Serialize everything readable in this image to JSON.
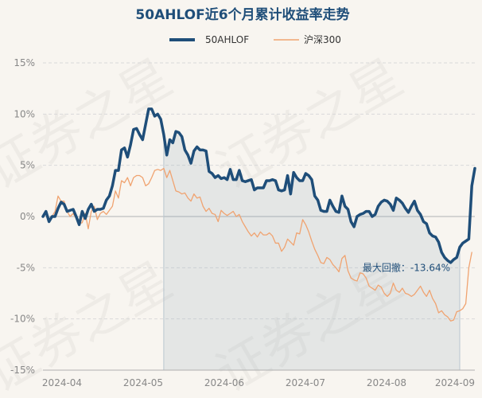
{
  "chart_data": {
    "type": "line",
    "title": "50AHLOF近6个月累计收益率走势",
    "watermark": "证券之星",
    "ylim": [
      -15,
      15
    ],
    "yticks": [
      15,
      10,
      5,
      0,
      -5,
      -10,
      -15
    ],
    "ytick_labels": [
      "15%",
      "10%",
      "5%",
      "0%",
      "-5%",
      "-10%",
      "-15%"
    ],
    "x_tick_labels": [
      "2024-04",
      "2024-05",
      "2024-06",
      "2024-07",
      "2024-08",
      "2024-09"
    ],
    "legend_position": "top-center",
    "grid": "horizontal-dashed",
    "max_drawdown": {
      "label": "最大回撤：-13.64%",
      "value": -13.64,
      "start_index": 40,
      "end_index": 138
    },
    "series": [
      {
        "name": "50AHLOF",
        "color": "#1f4e79",
        "values": [
          0,
          0.5,
          -0.5,
          0,
          0,
          0.8,
          1.4,
          1.2,
          0.5,
          0.6,
          0.7,
          0,
          -0.8,
          0.5,
          -0.2,
          0.7,
          1.2,
          0.5,
          0.7,
          0.7,
          0.8,
          1.6,
          2,
          3,
          4.5,
          4.5,
          6.5,
          6.7,
          5.8,
          7,
          8.5,
          8.6,
          8,
          7.5,
          9,
          10.5,
          10.5,
          9.8,
          10,
          9.5,
          8,
          6,
          7.5,
          7.2,
          8.3,
          8.2,
          7.8,
          6.5,
          6,
          5.2,
          6.4,
          6.8,
          6.5,
          6.5,
          6.4,
          4.4,
          4.2,
          3.8,
          4,
          3.7,
          3.8,
          3.6,
          4.6,
          3.6,
          3.6,
          4.5,
          3.5,
          3.4,
          3.5,
          3.6,
          2.6,
          2.8,
          2.8,
          2.8,
          3.5,
          3.5,
          3.6,
          3.5,
          2.6,
          2.5,
          2.6,
          4,
          2.2,
          4.3,
          3.8,
          3.5,
          3.5,
          4.2,
          4,
          3.6,
          2,
          1.6,
          0.6,
          0.5,
          0.5,
          1.6,
          1,
          0.5,
          0.4,
          2,
          1,
          0.7,
          -0.5,
          -1,
          0,
          0.2,
          0.3,
          0.5,
          0.5,
          0,
          0.2,
          1,
          1.4,
          1.6,
          1.5,
          1.2,
          0.6,
          1.8,
          1.6,
          1.3,
          0.8,
          0.4,
          1,
          1.5,
          0.6,
          0.2,
          -0.5,
          -0.7,
          -1.6,
          -1.9,
          -2,
          -2.5,
          -3.5,
          -4,
          -4.3,
          -4.5,
          -4.2,
          -4,
          -3,
          -2.6,
          -2.4,
          -2.2,
          3,
          4.7
        ]
      },
      {
        "name": "沪深300",
        "color": "#f0a370",
        "values": [
          0,
          0.5,
          -0.5,
          0,
          0.5,
          2,
          1.5,
          1.5,
          0.5,
          0,
          0.3,
          -0.2,
          -0.7,
          -0.6,
          0.3,
          -1.2,
          0.5,
          1,
          -0.3,
          0.3,
          0.5,
          0.2,
          0.6,
          1,
          2.5,
          1.8,
          3.5,
          3.3,
          3.8,
          3,
          3.8,
          4,
          4,
          3.8,
          3,
          3.2,
          3.8,
          4.5,
          4.6,
          4.5,
          4.7,
          3.8,
          4.5,
          3.5,
          2.5,
          2.4,
          2.2,
          2.3,
          1.8,
          1.5,
          2.2,
          1.8,
          1.9,
          1,
          0.5,
          0.8,
          0.3,
          0.2,
          -0.5,
          0.6,
          0.3,
          0.1,
          0.3,
          0.5,
          0,
          0.2,
          -0.5,
          -1,
          -1.5,
          -1.9,
          -1.6,
          -2,
          -1.5,
          -1.8,
          -1.8,
          -1.6,
          -1.9,
          -2.6,
          -2.6,
          -3.4,
          -3,
          -2.2,
          -2.5,
          -2.8,
          -1.6,
          -1.7,
          -0.3,
          -0.8,
          -1.5,
          -2.4,
          -3.2,
          -3.8,
          -4.5,
          -4.6,
          -4,
          -4.2,
          -4.7,
          -5,
          -5.4,
          -4.1,
          -3.8,
          -5.3,
          -6,
          -6.2,
          -6.3,
          -5.5,
          -5.6,
          -6,
          -6.8,
          -7,
          -7.2,
          -6.7,
          -6.9,
          -7.5,
          -7.8,
          -7.5,
          -6.5,
          -7.2,
          -7.4,
          -7,
          -7.5,
          -7.6,
          -7.8,
          -7.6,
          -7.2,
          -6.8,
          -7.4,
          -7.8,
          -7.2,
          -8,
          -8.5,
          -9.4,
          -9.2,
          -9.6,
          -9.8,
          -10.2,
          -10.1,
          -9.3,
          -9.2,
          -9,
          -8.5,
          -5,
          -3.5
        ]
      }
    ]
  }
}
